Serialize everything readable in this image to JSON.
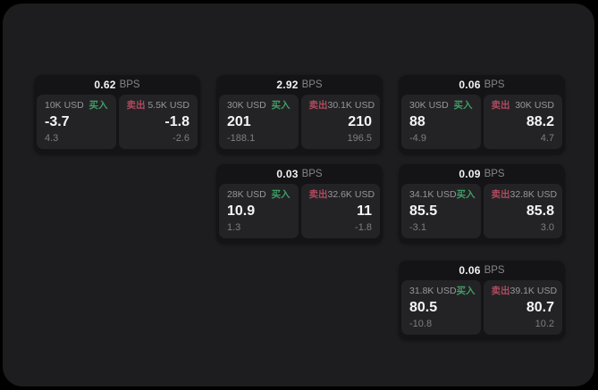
{
  "labels": {
    "bps_suffix": "BPS",
    "buy": "买入",
    "sell": "卖出"
  },
  "colors": {
    "buy": "#3f9e63",
    "sell": "#b04a5e"
  },
  "cards": [
    {
      "bps": "0.62",
      "buy": {
        "amount": "10K USD",
        "value": "-3.7",
        "sub": "4.3"
      },
      "sell": {
        "amount": "5.5K USD",
        "value": "-1.8",
        "sub": "-2.6"
      }
    },
    {
      "bps": "2.92",
      "buy": {
        "amount": "30K USD",
        "value": "201",
        "sub": "-188.1"
      },
      "sell": {
        "amount": "30.1K USD",
        "value": "210",
        "sub": "196.5"
      }
    },
    {
      "bps": "0.06",
      "buy": {
        "amount": "30K USD",
        "value": "88",
        "sub": "-4.9"
      },
      "sell": {
        "amount": "30K USD",
        "value": "88.2",
        "sub": "4.7"
      }
    },
    {
      "bps": "0.03",
      "buy": {
        "amount": "28K USD",
        "value": "10.9",
        "sub": "1.3"
      },
      "sell": {
        "amount": "32.6K USD",
        "value": "11",
        "sub": "-1.8"
      }
    },
    {
      "bps": "0.09",
      "buy": {
        "amount": "34.1K USD",
        "value": "85.5",
        "sub": "-3.1"
      },
      "sell": {
        "amount": "32.8K USD",
        "value": "85.8",
        "sub": "3.0"
      }
    },
    {
      "bps": "0.06",
      "buy": {
        "amount": "31.8K USD",
        "value": "80.5",
        "sub": "-10.8"
      },
      "sell": {
        "amount": "39.1K USD",
        "value": "80.7",
        "sub": "10.2"
      }
    }
  ]
}
